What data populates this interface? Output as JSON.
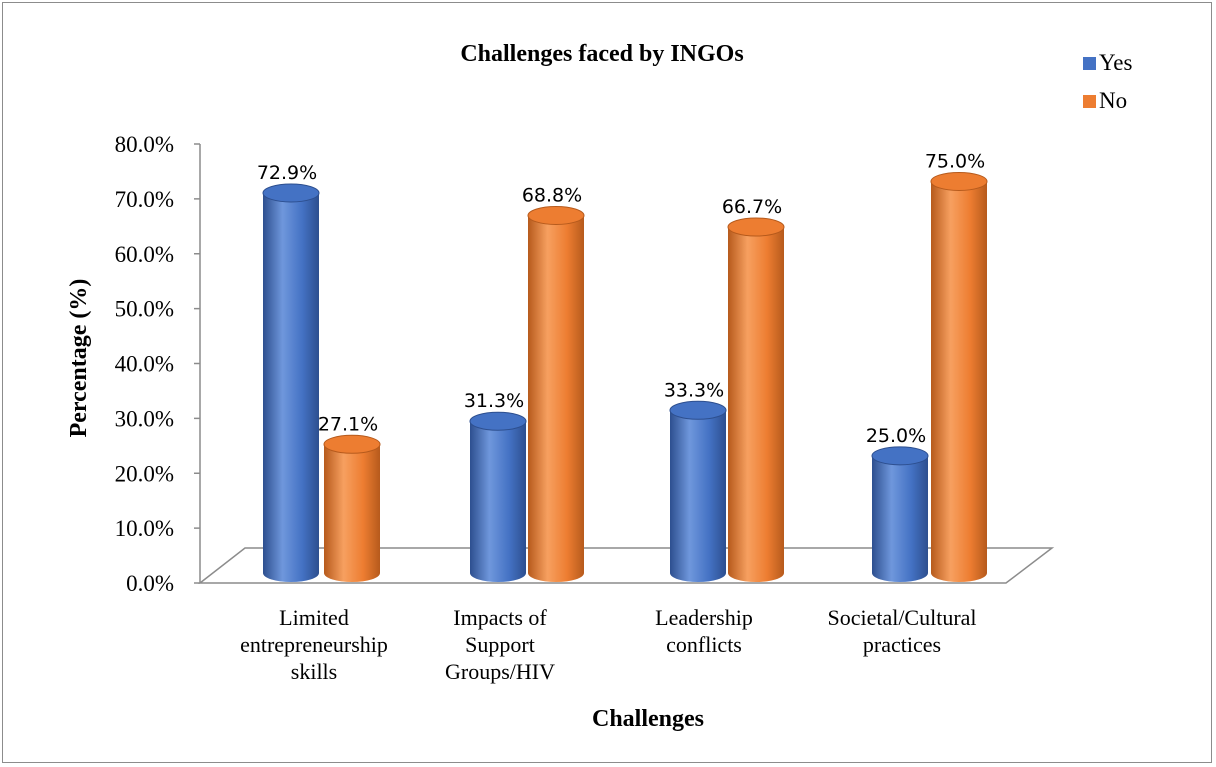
{
  "chart_data": {
    "type": "bar",
    "title": "Challenges faced by INGOs",
    "xlabel": "Challenges",
    "ylabel": "Percentage (%)",
    "categories": [
      [
        "Limited",
        "entrepreneurship",
        "skills"
      ],
      [
        "Impacts of",
        "Support",
        "Groups/HIV"
      ],
      [
        "Leadership",
        "conflicts"
      ],
      [
        "Societal/Cultural",
        "practices"
      ]
    ],
    "series": [
      {
        "name": "Yes",
        "values": [
          72.9,
          31.3,
          33.3,
          25.0
        ],
        "labels": [
          "72.9%",
          "31.3%",
          "33.3%",
          "25.0%"
        ],
        "color": "#4472C4",
        "dark": "#2d4f8f",
        "light": "#6f97dc"
      },
      {
        "name": "No",
        "values": [
          27.1,
          68.8,
          66.7,
          75.0
        ],
        "labels": [
          "27.1%",
          "68.8%",
          "66.7%",
          "75.0%"
        ],
        "color": "#ED7D31",
        "dark": "#b65a1c",
        "light": "#f7a060"
      }
    ],
    "yticks": [
      "0.0%",
      "10.0%",
      "20.0%",
      "30.0%",
      "40.0%",
      "50.0%",
      "60.0%",
      "70.0%",
      "80.0%"
    ],
    "ylim": [
      0,
      80
    ],
    "grid": false,
    "legend_position": "top-right",
    "style": "3d-cylinder"
  }
}
